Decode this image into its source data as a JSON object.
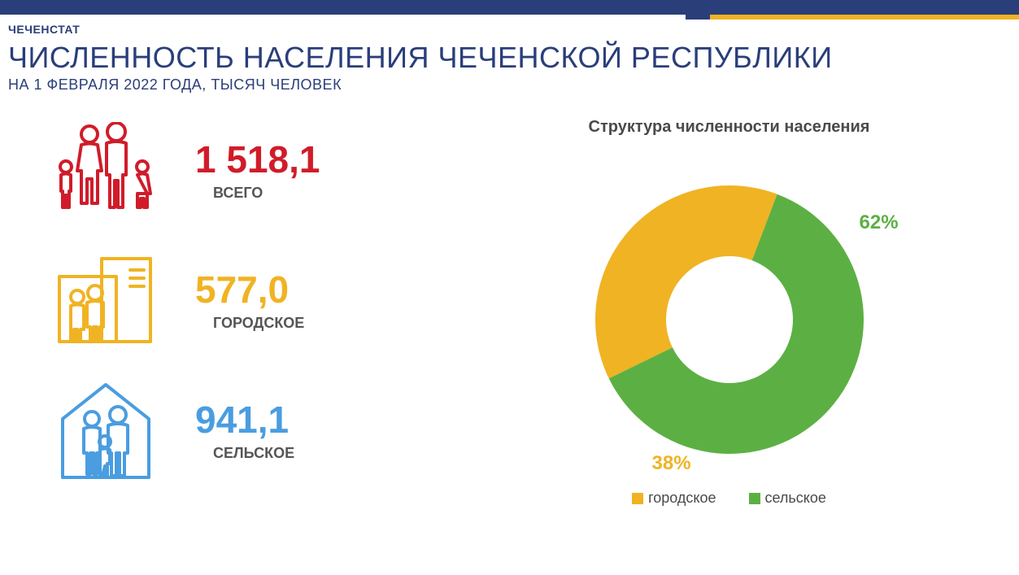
{
  "header": {
    "org": "ЧЕЧЕНСТАТ",
    "title": "ЧИСЛЕННОСТЬ НАСЕЛЕНИЯ ЧЕЧЕНСКОЙ РЕСПУБЛИКИ",
    "subtitle": "НА 1 ФЕВРАЛЯ 2022 ГОДА, ТЫСЯЧ  ЧЕЛОВЕК"
  },
  "stats": {
    "total": {
      "value": "1 518,1",
      "label": "ВСЕГО",
      "color": "#d01c2a"
    },
    "urban": {
      "value": "577,0",
      "label": "ГОРОДСКОЕ",
      "color": "#f0b323"
    },
    "rural": {
      "value": "941,1",
      "label": "СЕЛЬСКОЕ",
      "color": "#4a9de0"
    }
  },
  "chart": {
    "type": "donut",
    "title": "Структура численности населения",
    "slices": [
      {
        "name": "городское",
        "value": 38,
        "display": "38%",
        "color": "#f0b323"
      },
      {
        "name": "сельское",
        "value": 62,
        "display": "62%",
        "color": "#5cb043"
      }
    ],
    "inner_radius_pct": 42,
    "outer_radius_pct": 80,
    "background_color": "#ffffff",
    "label_fontsize": 24,
    "legend_fontsize": 18
  },
  "accent": {
    "blue": "#2a3e7a",
    "yellow": "#f0b323"
  }
}
